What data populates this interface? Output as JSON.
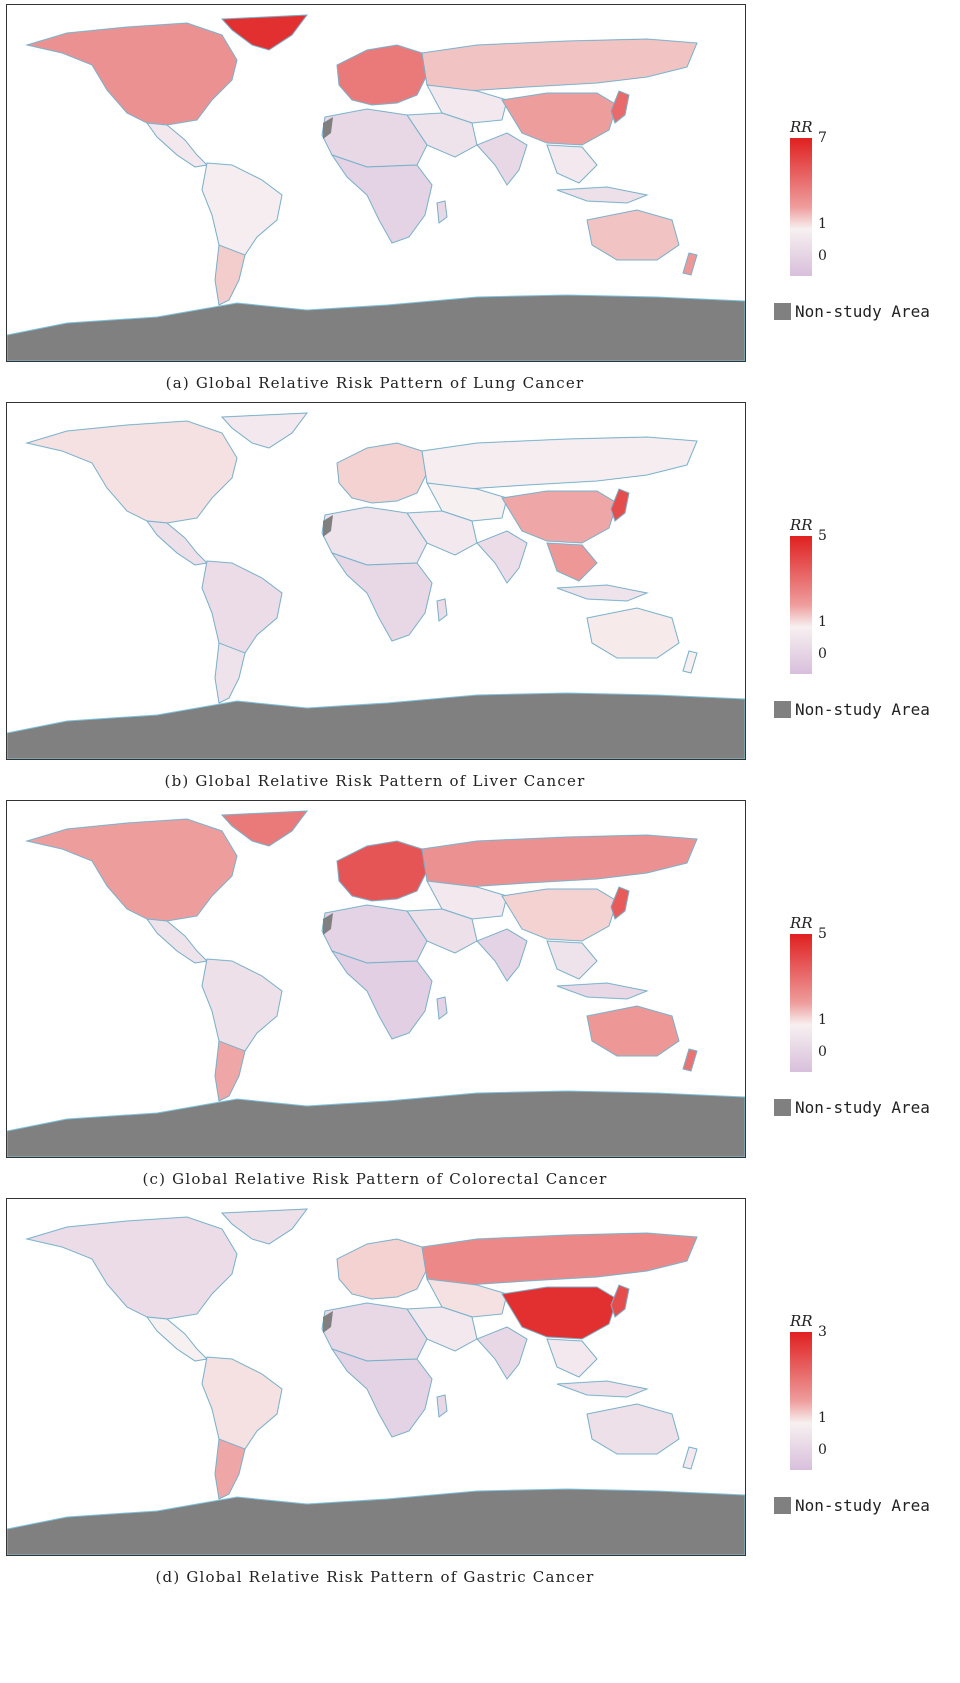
{
  "legend_title": "RR",
  "non_study_label": "Non-study Area",
  "colors": {
    "high": "#e02020",
    "neutral": "#f7f0f0",
    "low": "#d8bfdc",
    "non_study": "#808080",
    "coast": "#7ec3de",
    "border": "#6b5a6a"
  },
  "panels": [
    {
      "id": "a",
      "caption": "(a) Global Relative Risk Pattern of Lung Cancer",
      "rr_ticks": [
        "7",
        "1",
        "0"
      ],
      "rr_max": 7,
      "risk": {
        "north-america": 0.62,
        "greenland": 0.95,
        "central-america": 0.25,
        "south-america": 0.28,
        "southern-cone": 0.42,
        "europe": 0.7,
        "russia": 0.45,
        "central-asia": 0.25,
        "middle-east": 0.22,
        "north-africa": 0.15,
        "sub-saharan-africa": 0.12,
        "madagascar": 0.15,
        "south-asia": 0.15,
        "china": 0.58,
        "se-asia": 0.25,
        "japan": 0.75,
        "indonesia": 0.2,
        "australia": 0.45,
        "new-zealand": 0.6
      }
    },
    {
      "id": "b",
      "caption": "(b) Global Relative Risk Pattern of Liver Cancer",
      "rr_ticks": [
        "5",
        "1",
        "0"
      ],
      "rr_max": 5,
      "risk": {
        "north-america": 0.35,
        "greenland": 0.25,
        "central-america": 0.2,
        "south-america": 0.18,
        "southern-cone": 0.22,
        "europe": 0.4,
        "russia": 0.28,
        "central-asia": 0.3,
        "middle-east": 0.25,
        "north-africa": 0.22,
        "sub-saharan-africa": 0.15,
        "madagascar": 0.18,
        "south-asia": 0.18,
        "china": 0.55,
        "se-asia": 0.6,
        "japan": 0.85,
        "indonesia": 0.22,
        "australia": 0.32,
        "new-zealand": 0.3
      }
    },
    {
      "id": "c",
      "caption": "(c) Global Relative Risk Pattern of Colorectal Cancer",
      "rr_ticks": [
        "5",
        "1",
        "0"
      ],
      "rr_max": 5,
      "risk": {
        "north-america": 0.58,
        "greenland": 0.7,
        "central-america": 0.22,
        "south-america": 0.2,
        "southern-cone": 0.55,
        "europe": 0.82,
        "russia": 0.62,
        "central-asia": 0.25,
        "middle-east": 0.2,
        "north-africa": 0.12,
        "sub-saharan-africa": 0.1,
        "madagascar": 0.12,
        "south-asia": 0.12,
        "china": 0.4,
        "se-asia": 0.22,
        "japan": 0.8,
        "indonesia": 0.15,
        "australia": 0.6,
        "new-zealand": 0.72
      }
    },
    {
      "id": "d",
      "caption": "(d) Global Relative Risk Pattern of Gastric Cancer",
      "rr_ticks": [
        "3",
        "1",
        "0"
      ],
      "rr_max": 3,
      "risk": {
        "north-america": 0.18,
        "greenland": 0.2,
        "central-america": 0.3,
        "south-america": 0.35,
        "southern-cone": 0.55,
        "europe": 0.4,
        "russia": 0.65,
        "central-asia": 0.35,
        "middle-east": 0.25,
        "north-africa": 0.15,
        "sub-saharan-africa": 0.12,
        "madagascar": 0.15,
        "south-asia": 0.15,
        "china": 0.95,
        "se-asia": 0.25,
        "japan": 0.85,
        "indonesia": 0.2,
        "australia": 0.2,
        "new-zealand": 0.25
      }
    }
  ]
}
